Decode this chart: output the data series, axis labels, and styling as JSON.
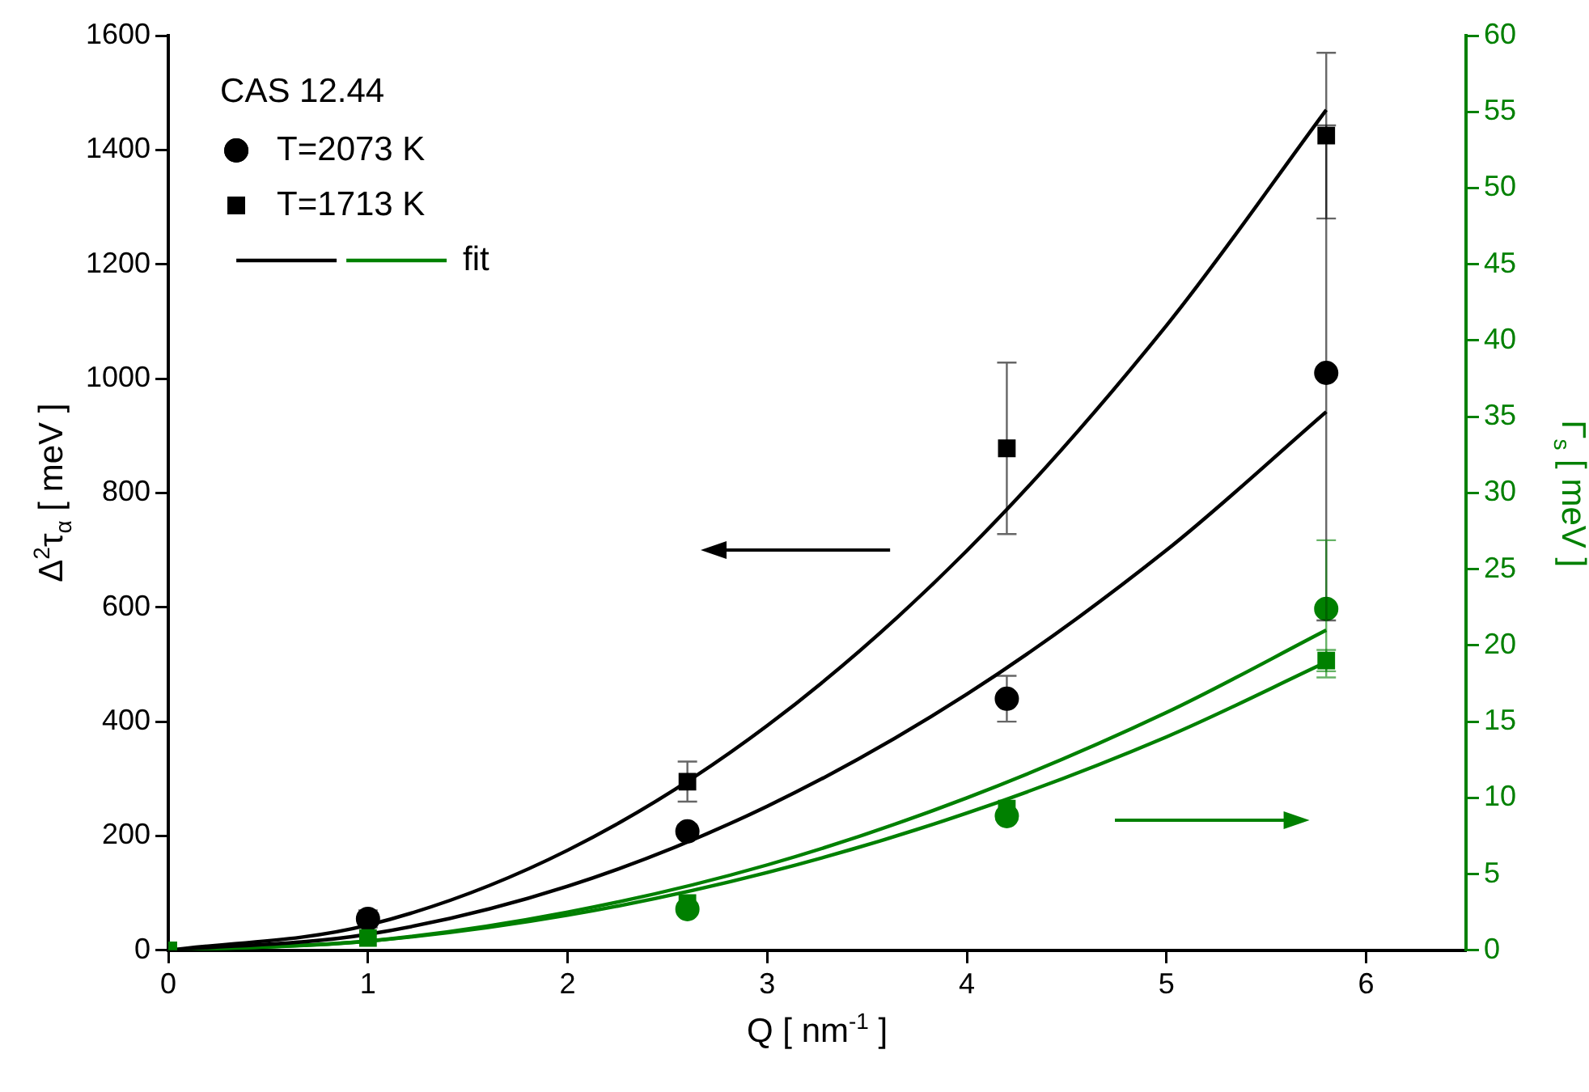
{
  "chart_data": {
    "type": "scatter",
    "annotations": [
      "CAS 12.44"
    ],
    "xlabel": "Q [ nm$^{-1}$ ]",
    "ylabel": "Δ$^{2}$τ$_{α}$ [ meV ]",
    "y2label": "Γ$_{s}$ [ meV ]",
    "xlim": [
      0,
      6.5
    ],
    "xticks": [
      0,
      1,
      2,
      3,
      4,
      5,
      6
    ],
    "ylim": [
      0,
      1600
    ],
    "yticks": [
      0,
      200,
      400,
      600,
      800,
      1000,
      1200,
      1400,
      1600
    ],
    "y2lim": [
      0,
      60
    ],
    "y2ticks": [
      0,
      5,
      10,
      15,
      20,
      25,
      30,
      35,
      40,
      45,
      50,
      55,
      60
    ],
    "legend": "top left",
    "grid": false,
    "series": [
      {
        "name": "T=2073 K",
        "type": "scatter",
        "marker": "circle",
        "color": "#000000",
        "x": [
          1,
          2.6,
          4.2,
          5.8
        ],
        "values": [
          55,
          208,
          440,
          1010
        ],
        "errors": [
          15,
          12,
          40,
          433
        ]
      },
      {
        "name": "T=1713 K",
        "type": "scatter",
        "marker": "square",
        "color": "#000000",
        "x": [
          2.6,
          4.2,
          5.8
        ],
        "values": [
          295,
          878,
          1425
        ],
        "errors": [
          35,
          150,
          145
        ]
      },
      {
        "type": "scatter",
        "marker": "circle",
        "color": "#008000",
        "axis": "y2",
        "x": [
          2.6,
          4.2,
          5.8
        ],
        "values": [
          2.7,
          8.8,
          22.4
        ],
        "errors": [
          null,
          null,
          4.5
        ]
      },
      {
        "type": "scatter",
        "marker": "square",
        "color": "#008000",
        "axis": "y2",
        "x": [
          0,
          1,
          2.6,
          4.2,
          5.8
        ],
        "values": [
          0,
          0.8,
          3.1,
          9.3,
          19
        ],
        "errors": [
          null,
          null,
          null,
          null,
          0.7
        ]
      },
      {
        "type": "line",
        "marker": "none",
        "color": "#000000",
        "x": [
          0,
          1,
          2,
          3,
          4,
          5,
          5.8
        ],
        "values": [
          0,
          44,
          175,
          393,
          699,
          1093,
          1470
        ]
      },
      {
        "type": "line",
        "marker": "none",
        "color": "#000000",
        "x": [
          0,
          1,
          2,
          3,
          4,
          5,
          5.8
        ],
        "values": [
          0,
          28,
          112,
          252,
          448,
          700,
          942
        ]
      },
      {
        "type": "line",
        "marker": "none",
        "color": "#008000",
        "axis": "y2",
        "x": [
          0,
          1,
          2,
          3,
          4,
          5,
          5.8
        ],
        "values": [
          0,
          0.6,
          2.5,
          5.6,
          10,
          15.6,
          21
        ],
        "name": "fit"
      },
      {
        "type": "line",
        "marker": "none",
        "color": "#008000",
        "axis": "y2",
        "x": [
          0,
          1,
          2,
          3,
          4,
          5,
          5.8
        ],
        "values": [
          0,
          0.6,
          2.3,
          5.1,
          9,
          14,
          18.9
        ]
      }
    ]
  }
}
